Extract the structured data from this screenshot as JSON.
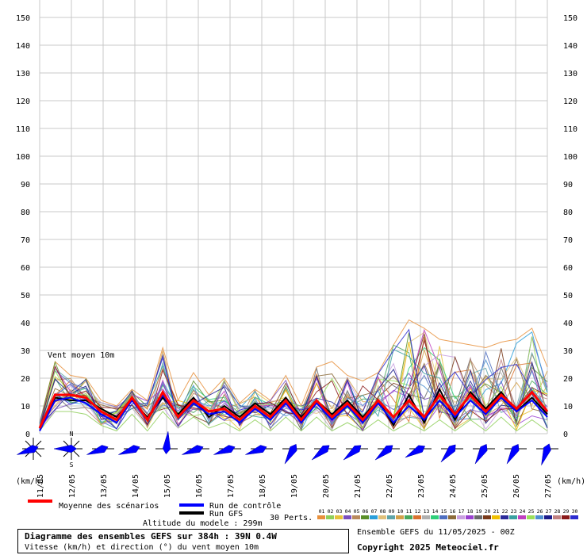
{
  "chart_data": {
    "type": "line",
    "title": "Diagramme des ensembles GEFS sur 384h : 39N 0.4W",
    "subtitle": "Vitesse (km/h) et direction (°) du vent moyen 10m",
    "chart_label": "Vent moyen 10m",
    "y_ticks": [
      0,
      10,
      20,
      30,
      40,
      50,
      60,
      70,
      80,
      90,
      100,
      110,
      120,
      130,
      140,
      150
    ],
    "ylim": [
      0,
      150
    ],
    "unit_label": "(km/h)",
    "x_tick_labels": [
      "11/05",
      "12/05",
      "13/05",
      "14/05",
      "15/05",
      "16/05",
      "17/05",
      "18/05",
      "19/05",
      "20/05",
      "21/05",
      "22/05",
      "23/05",
      "24/05",
      "25/05",
      "26/05",
      "27/05"
    ],
    "grid": true,
    "series": [
      {
        "name": "Moyenne des scénarios",
        "color": "#ff0000",
        "values": [
          2,
          14,
          14,
          13,
          8,
          5,
          13,
          5,
          15,
          6,
          12,
          8,
          9,
          5,
          10,
          6,
          12,
          5,
          12,
          6,
          11,
          5,
          12,
          6,
          12,
          6,
          14,
          7,
          14,
          8,
          14,
          9,
          15,
          8
        ]
      },
      {
        "name": "Run de contrôle",
        "color": "#0000ff",
        "values": [
          1,
          12,
          13,
          11,
          7,
          4,
          12,
          5,
          14,
          6,
          11,
          7,
          8,
          4,
          9,
          5,
          11,
          4,
          11,
          5,
          10,
          4,
          11,
          4,
          10,
          5,
          12,
          6,
          12,
          7,
          13,
          8,
          12,
          6
        ]
      },
      {
        "name": "Run GFS",
        "color": "#000000",
        "values": [
          2,
          13,
          12,
          12,
          9,
          6,
          12,
          6,
          13,
          7,
          13,
          6,
          10,
          6,
          11,
          7,
          13,
          6,
          12,
          7,
          12,
          6,
          12,
          3,
          14,
          4,
          16,
          5,
          15,
          9,
          15,
          8,
          13,
          7
        ]
      }
    ],
    "spread_envelope": {
      "upper": [
        4,
        26,
        21,
        20,
        12,
        10,
        16,
        12,
        31,
        12,
        22,
        14,
        20,
        11,
        16,
        12,
        21,
        10,
        24,
        26,
        21,
        19,
        22,
        32,
        41,
        38,
        34,
        33,
        32,
        31,
        33,
        34,
        38,
        24
      ],
      "lower": [
        1,
        8,
        8,
        7,
        3,
        1,
        7,
        1,
        8,
        2,
        6,
        2,
        4,
        1,
        5,
        1,
        6,
        1,
        6,
        1,
        4,
        1,
        5,
        1,
        4,
        1,
        5,
        1,
        5,
        1,
        6,
        1,
        5,
        1
      ]
    },
    "wind_directions_deg": [
      250,
      270,
      250,
      250,
      5,
      250,
      250,
      250,
      210,
      230,
      230,
      230,
      240,
      220,
      210,
      210,
      200
    ],
    "wind_rose_labels": {
      "north": "N",
      "south": "S"
    },
    "legend": {
      "mean_label": "Moyenne des scénarios",
      "control_label": "Run de contrôle",
      "gfs_label": "Run GFS",
      "perturbations_label": "30 Perts.",
      "perturbation_numbers": [
        "01",
        "02",
        "03",
        "04",
        "05",
        "06",
        "07",
        "08",
        "09",
        "10",
        "11",
        "12",
        "13",
        "14",
        "15",
        "16",
        "17",
        "18",
        "19",
        "20",
        "21",
        "22",
        "23",
        "24",
        "25",
        "26",
        "27",
        "28",
        "29",
        "30"
      ],
      "perturbation_colors": [
        "#e8903c",
        "#8fcf5a",
        "#e6c23a",
        "#7a4fbf",
        "#b98a5c",
        "#5a8f2a",
        "#2a9fdb",
        "#e0c07a",
        "#5fa4a8",
        "#d2a04a",
        "#4aa85c",
        "#d9722f",
        "#b0b0b0",
        "#2ecf7a",
        "#4f6fc0",
        "#8c6b3a",
        "#c8a0e0",
        "#9a40d0",
        "#6a6a6a",
        "#7a3a1a",
        "#f0c000",
        "#2a2a9a",
        "#3aa0a0",
        "#c040c0",
        "#9adf5a",
        "#4f8fd0",
        "#1a1a8a",
        "#c08080",
        "#8a1a1a",
        "#2a2acf"
      ]
    }
  },
  "info": {
    "altitude": "Altitude du modele : 299m",
    "run_info": "Ensemble GEFS du 11/05/2025 - 00Z",
    "copyright": "Copyright 2025 Meteociel.fr"
  }
}
